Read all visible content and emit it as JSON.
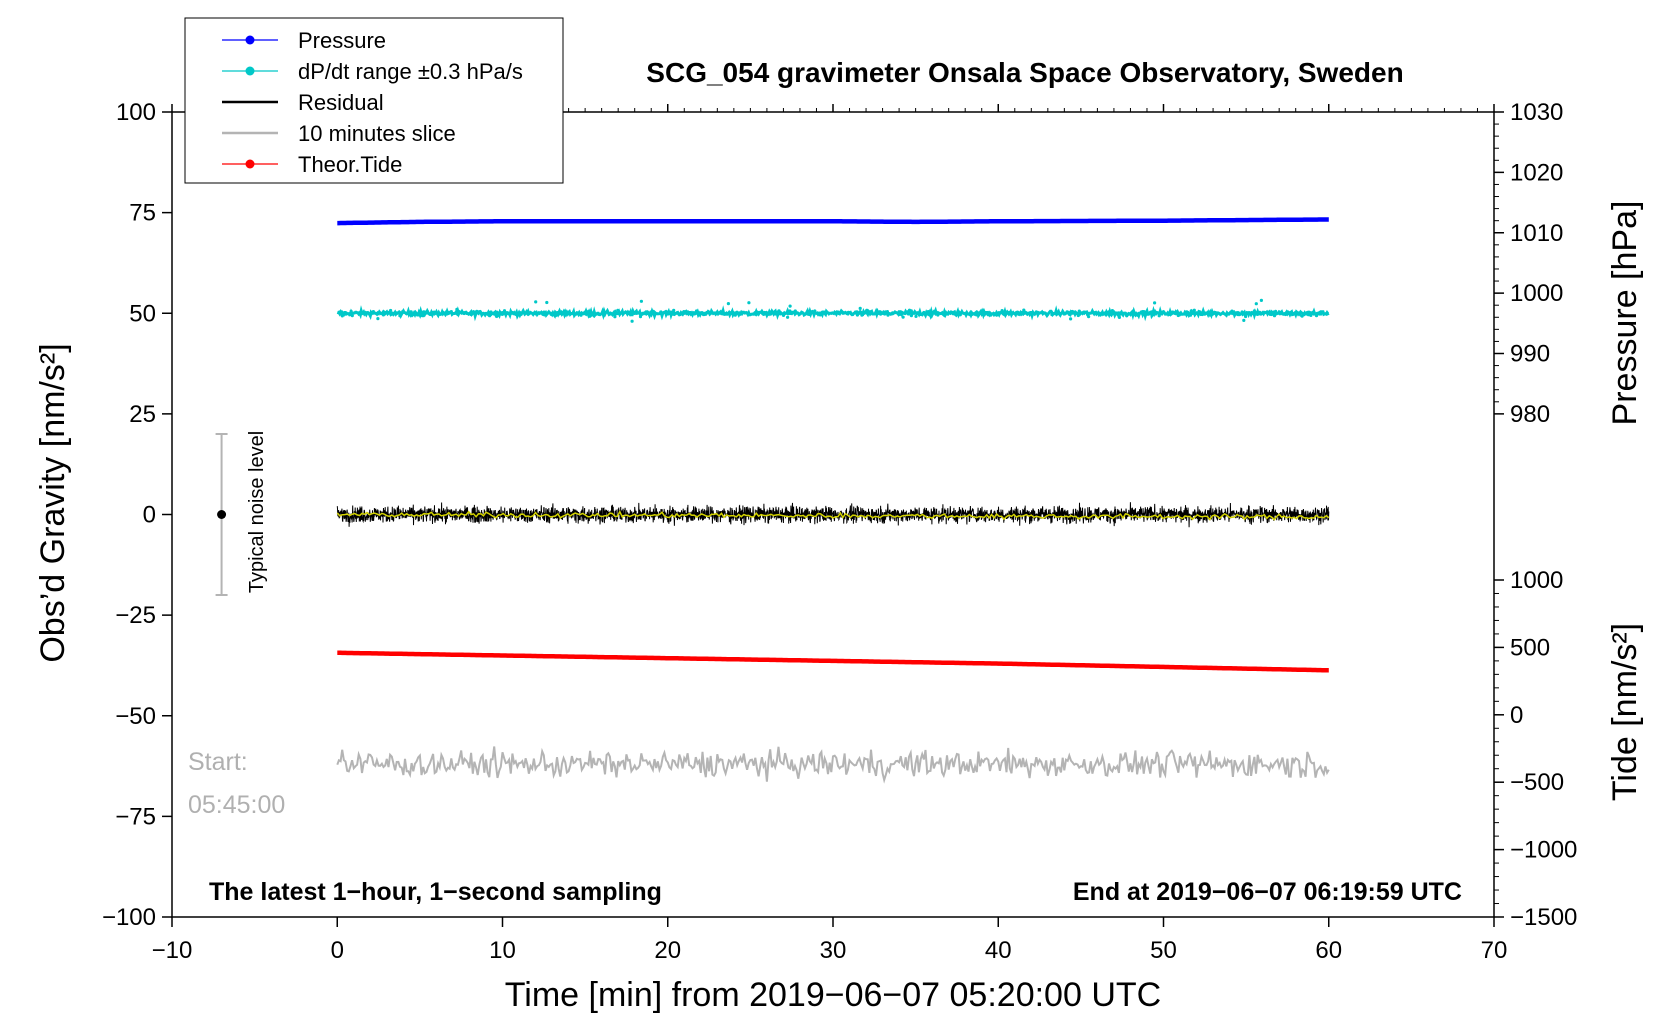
{
  "chart_data": {
    "type": "line",
    "title": "SCG_054 gravimeter Onsala Space Observatory, Sweden",
    "xlabel": "Time [min] from 2019−06−07 05:20:00 UTC",
    "ylabel": "Obs’d Gravity [nm/s²]",
    "ylabel_right_top": "Pressure [hPa]",
    "ylabel_right_bottom": "Tide [nm/s²]",
    "xlim": [
      -10,
      70
    ],
    "ylim": [
      -100,
      100
    ],
    "pressure_lim": [
      980,
      1030
    ],
    "tide_lim": [
      -1500,
      1000
    ],
    "x_ticks": [
      "−10",
      "0",
      "10",
      "20",
      "30",
      "40",
      "50",
      "60",
      "70"
    ],
    "x_tick_values": [
      -10,
      0,
      10,
      20,
      30,
      40,
      50,
      60,
      70
    ],
    "y_ticks": [
      "−100",
      "−75",
      "−50",
      "−25",
      "0",
      "25",
      "50",
      "75",
      "100"
    ],
    "y_tick_values": [
      -100,
      -75,
      -50,
      -25,
      0,
      25,
      50,
      75,
      100
    ],
    "pressure_ticks": [
      "980",
      "990",
      "1000",
      "1010",
      "1020",
      "1030"
    ],
    "pressure_tick_values": [
      980,
      990,
      1000,
      1010,
      1020,
      1030
    ],
    "tide_ticks": [
      "−1500",
      "−1000",
      "−500",
      "0",
      "500",
      "1000"
    ],
    "tide_tick_values": [
      -1500,
      -1000,
      -500,
      0,
      500,
      1000
    ],
    "legend_position": "top-left",
    "legend": [
      {
        "label": "Pressure",
        "color": "#0000ff",
        "marker": true
      },
      {
        "label": "dP/dt range ±0.3 hPa/s",
        "color": "#00c8c8",
        "marker": true
      },
      {
        "label": "Residual",
        "color": "#000000",
        "marker": false
      },
      {
        "label": "10 minutes slice",
        "color": "#b4b4b4",
        "marker": false
      },
      {
        "label": "Theor.Tide",
        "color": "#ff0000",
        "marker": true
      }
    ],
    "series": [
      {
        "name": "Pressure",
        "axis": "pressure",
        "color": "#0000ff",
        "x": [
          0,
          5,
          10,
          20,
          30,
          35,
          40,
          50,
          60
        ],
        "values": [
          1011.6,
          1011.8,
          1011.9,
          1011.9,
          1011.9,
          1011.8,
          1011.9,
          1012.0,
          1012.2
        ]
      },
      {
        "name": "dP/dt range ±0.3 hPa/s",
        "axis": "gravity",
        "color": "#00c8c8",
        "x": [
          0,
          60
        ],
        "values": [
          50,
          50
        ],
        "spread": 0.8
      },
      {
        "name": "Residual",
        "axis": "gravity",
        "color": "#000000",
        "x": [
          0,
          60
        ],
        "values": [
          0,
          0
        ],
        "spread": 2.0
      },
      {
        "name": "10 minutes slice",
        "axis": "gravity",
        "color": "#b4b4b4",
        "x": [
          0,
          60
        ],
        "values": [
          -62,
          -62
        ],
        "spread": 3.5
      },
      {
        "name": "Theor.Tide",
        "axis": "tide",
        "color": "#ff0000",
        "x": [
          0,
          10,
          20,
          30,
          40,
          50,
          60
        ],
        "values": [
          460,
          440,
          420,
          400,
          380,
          355,
          330
        ]
      }
    ],
    "smoothed_color": "#d2d200",
    "noise_bar": {
      "x": -7,
      "center": 0,
      "low": -20,
      "high": 20,
      "label": "Typical noise level"
    },
    "bottom_left_note": "The latest 1−hour, 1−second sampling",
    "bottom_right_note": "End at 2019−06−07 06:19:59 UTC",
    "start_label": "Start:",
    "start_time": "05:45:00"
  }
}
